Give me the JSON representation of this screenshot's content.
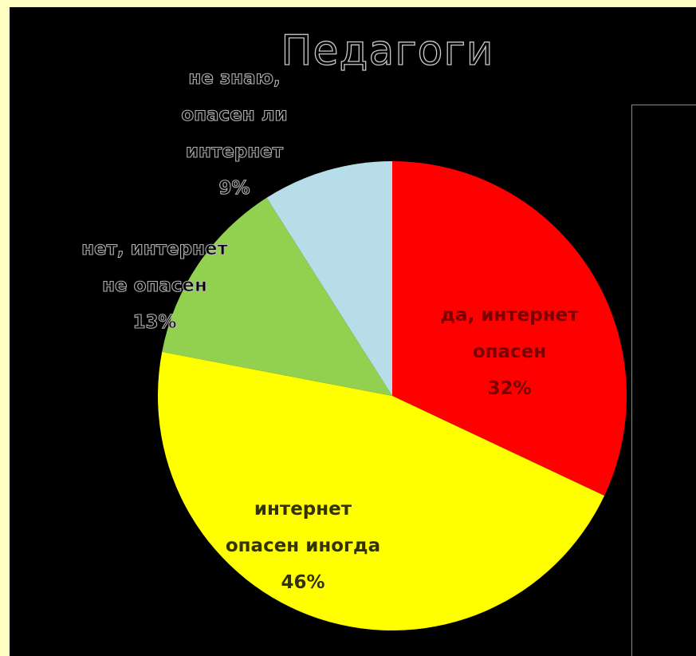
{
  "chart_data": {
    "type": "pie",
    "title": "Педагоги",
    "start_angle_deg": 0,
    "direction": "clockwise",
    "slices": [
      {
        "label_lines": [
          "да, интернет",
          "опасен"
        ],
        "value": 32,
        "value_label": "32%",
        "color": "#FF0000",
        "label_color": "#7A0000",
        "label_style": "inside"
      },
      {
        "label_lines": [
          "интернет",
          "опасен иногда"
        ],
        "value": 46,
        "value_label": "46%",
        "color": "#FFFF00",
        "label_color": "#333300",
        "label_style": "inside"
      },
      {
        "label_lines": [
          "нет, интернет",
          "не опасен"
        ],
        "value": 13,
        "value_label": "13%",
        "color": "#92D050",
        "label_color": "#000000",
        "label_style": "outline"
      },
      {
        "label_lines": [
          "не знаю,",
          "опасен ли",
          "интернет"
        ],
        "value": 9,
        "value_label": "9%",
        "color": "#B7DDE8",
        "label_color": "#000000",
        "label_style": "outline"
      }
    ]
  }
}
